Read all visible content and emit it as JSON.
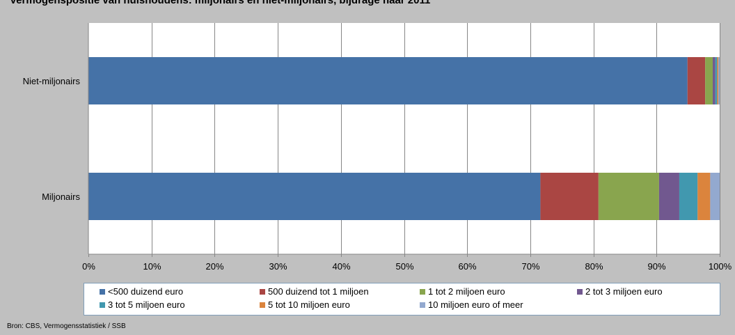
{
  "title": "Vermogenspositie van huishoudens: miljonairs en niet-miljonairs, bijdrage naar 2011",
  "source": "Bron: CBS, Vermogensstatistiek / SSB",
  "chart_data": {
    "type": "bar",
    "orientation": "horizontal",
    "stacked": "percent",
    "categories": [
      "Niet-miljonairs",
      "Miljonairs"
    ],
    "xlim": [
      0,
      100
    ],
    "x_ticks": [
      "0%",
      "10%",
      "20%",
      "30%",
      "40%",
      "50%",
      "60%",
      "70%",
      "80%",
      "90%",
      "100%"
    ],
    "grid": true,
    "legend_position": "bottom",
    "series": [
      {
        "name": "<500 duizend euro",
        "color": "#4572a7",
        "values": [
          94.9,
          71.6
        ]
      },
      {
        "name": "500 duizend tot 1 miljoen",
        "color": "#aa4643",
        "values": [
          2.8,
          9.2
        ]
      },
      {
        "name": "1 tot 2 miljoen euro",
        "color": "#89a54e",
        "values": [
          1.2,
          9.6
        ]
      },
      {
        "name": "2 tot 3 miljoen euro",
        "color": "#71588f",
        "values": [
          0.4,
          3.2
        ]
      },
      {
        "name": "3 tot 5 miljoen euro",
        "color": "#4198af",
        "values": [
          0.3,
          2.9
        ]
      },
      {
        "name": "5 tot 10 miljoen euro",
        "color": "#db843d",
        "values": [
          0.2,
          2.0
        ]
      },
      {
        "name": "10 miljoen euro of meer",
        "color": "#93a9cf",
        "values": [
          0.2,
          1.5
        ]
      }
    ]
  }
}
